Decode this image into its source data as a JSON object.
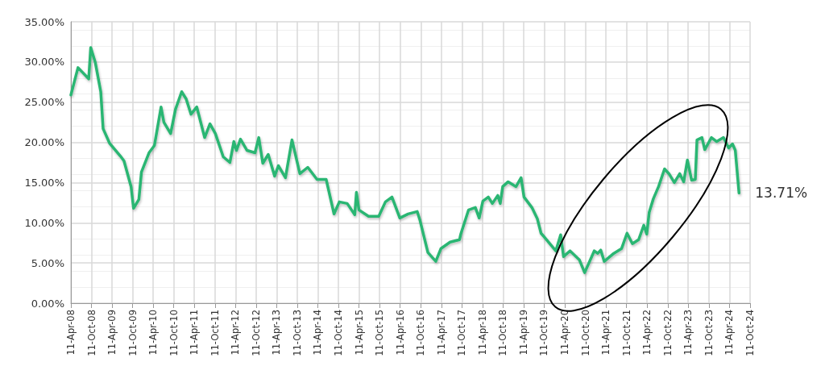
{
  "chart_data": {
    "type": "line",
    "annotations": [
      {
        "text": "13.71%",
        "x": "2024-07-05",
        "y": 13.71
      }
    ],
    "x": [
      "2008-04-11",
      "2008-06-13",
      "2008-09-16",
      "2008-10-04",
      "2008-11-14",
      "2009-01-01",
      "2009-01-22",
      "2009-03-20",
      "2009-06-24",
      "2009-07-26",
      "2009-09-27",
      "2009-10-19",
      "2009-12-05",
      "2009-12-28",
      "2010-03-05",
      "2010-04-22",
      "2010-06-20",
      "2010-07-15",
      "2010-09-13",
      "2010-10-26",
      "2010-12-20",
      "2011-01-29",
      "2011-03-13",
      "2011-05-03",
      "2011-07-12",
      "2011-08-28",
      "2011-10-15",
      "2011-12-24",
      "2012-02-21",
      "2012-03-27",
      "2012-04-19",
      "2012-05-25",
      "2012-07-22",
      "2012-10-01",
      "2012-11-03",
      "2012-12-09",
      "2013-01-26",
      "2013-03-24",
      "2013-04-26",
      "2013-06-28",
      "2013-08-25",
      "2013-11-03",
      "2014-01-12",
      "2014-04-04",
      "2014-06-24",
      "2014-09-02",
      "2014-10-19",
      "2014-12-28",
      "2015-03-05",
      "2015-03-20",
      "2015-04-11",
      "2015-07-05",
      "2015-10-04",
      "2015-12-02",
      "2016-01-29",
      "2016-04-08",
      "2016-06-20",
      "2016-09-09",
      "2016-10-04",
      "2016-12-13",
      "2017-02-21",
      "2017-04-08",
      "2017-06-28",
      "2017-09-20",
      "2017-10-01",
      "2017-12-09",
      "2018-02-07",
      "2018-03-13",
      "2018-04-15",
      "2018-06-02",
      "2018-07-08",
      "2018-08-25",
      "2018-09-16",
      "2018-10-08",
      "2018-11-25",
      "2019-02-03",
      "2019-03-20",
      "2019-04-15",
      "2019-06-24",
      "2019-08-11",
      "2019-09-13",
      "2019-10-19",
      "2020-01-22",
      "2020-03-05",
      "2020-03-31",
      "2020-05-28",
      "2020-08-18",
      "2020-10-04",
      "2020-12-28",
      "2021-01-29",
      "2021-02-24",
      "2021-03-27",
      "2021-06-20",
      "2021-08-28",
      "2021-10-15",
      "2021-12-02",
      "2022-01-26",
      "2022-03-13",
      "2022-04-08",
      "2022-04-30",
      "2022-06-06",
      "2022-07-22",
      "2022-09-13",
      "2022-10-22",
      "2022-12-09",
      "2023-01-26",
      "2023-03-02",
      "2023-04-04",
      "2023-05-11",
      "2023-06-13",
      "2023-06-28",
      "2023-08-11",
      "2023-09-05",
      "2023-11-03",
      "2023-12-20",
      "2024-02-18",
      "2024-04-04",
      "2024-05-08",
      "2024-06-02",
      "2024-07-05"
    ],
    "series": [
      {
        "color": "#2bb673",
        "values": [
          25.9,
          29.3,
          27.9,
          31.8,
          29.9,
          26.3,
          21.7,
          19.9,
          18.3,
          17.7,
          14.5,
          11.8,
          12.9,
          16.3,
          18.7,
          19.6,
          24.4,
          22.5,
          21.1,
          24.1,
          26.3,
          25.4,
          23.5,
          24.4,
          20.6,
          22.3,
          21.1,
          18.2,
          17.5,
          20.1,
          19.0,
          20.4,
          19.0,
          18.7,
          20.6,
          17.4,
          18.5,
          15.8,
          17.1,
          15.6,
          20.3,
          16.1,
          16.9,
          15.4,
          15.4,
          11.1,
          12.6,
          12.4,
          11.0,
          13.8,
          11.6,
          10.8,
          10.8,
          12.6,
          13.2,
          10.6,
          11.1,
          11.4,
          10.3,
          6.3,
          5.2,
          6.8,
          7.6,
          7.9,
          8.6,
          11.6,
          11.9,
          10.6,
          12.7,
          13.2,
          12.4,
          13.4,
          12.4,
          14.5,
          15.1,
          14.5,
          15.6,
          13.2,
          11.9,
          10.5,
          8.7,
          8.1,
          6.5,
          8.5,
          5.8,
          6.5,
          5.4,
          3.8,
          6.5,
          6.2,
          6.6,
          5.2,
          6.2,
          6.8,
          8.7,
          7.4,
          7.9,
          9.7,
          8.6,
          11.3,
          13.0,
          14.5,
          16.7,
          16.1,
          15.0,
          16.1,
          15.1,
          17.8,
          15.3,
          15.4,
          20.3,
          20.6,
          19.1,
          20.6,
          20.1,
          20.6,
          19.3,
          19.8,
          19.0,
          13.71
        ]
      }
    ],
    "xlim": [
      "2008-04-11",
      "2024-10-11"
    ],
    "xticks": [
      {
        "value": "2008-04-11",
        "label": "11-Apr-08"
      },
      {
        "value": "2008-10-11",
        "label": "11-Oct-08"
      },
      {
        "value": "2009-04-11",
        "label": "11-Apr-09"
      },
      {
        "value": "2009-10-11",
        "label": "11-Oct-09"
      },
      {
        "value": "2010-04-11",
        "label": "11-Apr-10"
      },
      {
        "value": "2010-10-11",
        "label": "11-Oct-10"
      },
      {
        "value": "2011-04-11",
        "label": "11-Apr-11"
      },
      {
        "value": "2011-10-11",
        "label": "11-Oct-11"
      },
      {
        "value": "2012-04-11",
        "label": "11-Apr-12"
      },
      {
        "value": "2012-10-11",
        "label": "11-Oct-12"
      },
      {
        "value": "2013-04-11",
        "label": "11-Apr-13"
      },
      {
        "value": "2013-10-11",
        "label": "11-Oct-13"
      },
      {
        "value": "2014-04-11",
        "label": "11-Apr-14"
      },
      {
        "value": "2014-10-11",
        "label": "11-Oct-14"
      },
      {
        "value": "2015-04-11",
        "label": "11-Apr-15"
      },
      {
        "value": "2015-10-11",
        "label": "11-Oct-15"
      },
      {
        "value": "2016-04-11",
        "label": "11-Apr-16"
      },
      {
        "value": "2016-10-11",
        "label": "11-Oct-16"
      },
      {
        "value": "2017-04-11",
        "label": "11-Apr-17"
      },
      {
        "value": "2017-10-11",
        "label": "11-Oct-17"
      },
      {
        "value": "2018-04-11",
        "label": "11-Apr-18"
      },
      {
        "value": "2018-10-11",
        "label": "11-Oct-18"
      },
      {
        "value": "2019-04-11",
        "label": "11-Apr-19"
      },
      {
        "value": "2019-10-11",
        "label": "11-Oct-19"
      },
      {
        "value": "2020-04-11",
        "label": "11-Apr-20"
      },
      {
        "value": "2020-10-11",
        "label": "11-Oct-20"
      },
      {
        "value": "2021-04-11",
        "label": "11-Apr-21"
      },
      {
        "value": "2021-10-11",
        "label": "11-Oct-21"
      },
      {
        "value": "2022-04-11",
        "label": "11-Apr-22"
      },
      {
        "value": "2022-10-11",
        "label": "11-Oct-22"
      },
      {
        "value": "2023-04-11",
        "label": "11-Apr-23"
      },
      {
        "value": "2023-10-11",
        "label": "11-Oct-23"
      },
      {
        "value": "2024-04-11",
        "label": "11-Apr-24"
      },
      {
        "value": "2024-10-11",
        "label": "11-Oct-24"
      }
    ],
    "ylim": [
      0,
      35
    ],
    "yticks": [
      {
        "value": 0,
        "label": "0.00%"
      },
      {
        "value": 5,
        "label": "5.00%"
      },
      {
        "value": 10,
        "label": "10.00%"
      },
      {
        "value": 15,
        "label": "15.00%"
      },
      {
        "value": 20,
        "label": "20.00%"
      },
      {
        "value": 25,
        "label": "25.00%"
      },
      {
        "value": 30,
        "label": "30.00%"
      },
      {
        "value": 35,
        "label": "35.00%"
      }
    ],
    "grid": true,
    "marker": "none",
    "line_style": "solid"
  }
}
